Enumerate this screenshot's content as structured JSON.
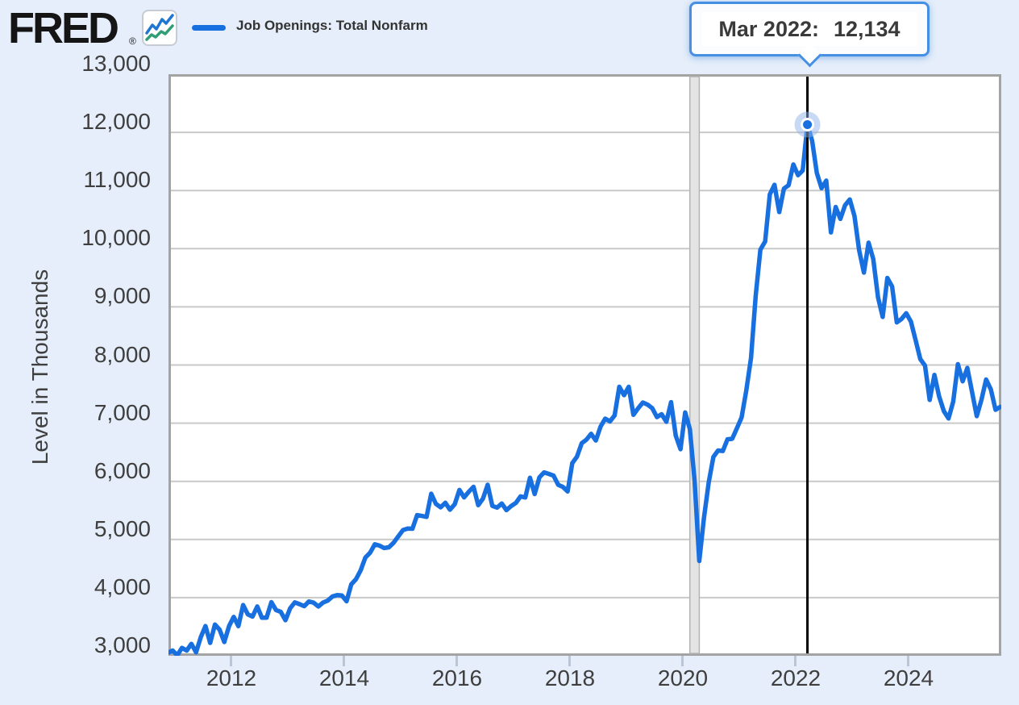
{
  "header": {
    "logo_text": "FRED",
    "logo_registered": "®",
    "legend_label": "Job Openings: Total Nonfarm"
  },
  "tooltip": {
    "date_label": "Mar 2022:",
    "value_label": "12,134"
  },
  "y_axis": {
    "title": "Level in Thousands",
    "ticks": [
      "13,000",
      "12,000",
      "11,000",
      "10,000",
      "9,000",
      "8,000",
      "7,000",
      "6,000",
      "5,000",
      "4,000",
      "3,000"
    ],
    "tick_values": [
      13000,
      12000,
      11000,
      10000,
      9000,
      8000,
      7000,
      6000,
      5000,
      4000,
      3000
    ]
  },
  "x_axis": {
    "ticks": [
      {
        "label": "2012",
        "year": 2012
      },
      {
        "label": "2014",
        "year": 2014
      },
      {
        "label": "2016",
        "year": 2016
      },
      {
        "label": "2018",
        "year": 2018
      },
      {
        "label": "2020",
        "year": 2020
      },
      {
        "label": "2022",
        "year": 2022
      },
      {
        "label": "2024",
        "year": 2024
      }
    ]
  },
  "colors": {
    "background": "#e5eefa",
    "line": "#176fe0",
    "grid": "#c9c9c9",
    "plot_border": "#a3a3a3",
    "band_fill": "#e4e4e4",
    "band_edge": "#b3b3b3",
    "halo": "#8fb4ea",
    "vline": "#000000",
    "tooltip_border": "#4590e2",
    "icon_blue": "#2176d2",
    "icon_green": "#2f9e77"
  },
  "chart_data": {
    "type": "line",
    "title": "Job Openings: Total Nonfarm",
    "ylabel": "Level in Thousands",
    "frequency": "monthly",
    "ylim": [
      3000,
      13000
    ],
    "xlim_years": [
      2010.886,
      2025.643
    ],
    "grid": "horizontal",
    "legend_position": "top-left",
    "recession_band": {
      "start": "2020-02",
      "end": "2020-04"
    },
    "highlight": {
      "date": "2022-03",
      "value": 12134,
      "label": "Mar 2022:  12,134"
    },
    "dates": [
      "2010-11",
      "2010-12",
      "2011-01",
      "2011-02",
      "2011-03",
      "2011-04",
      "2011-05",
      "2011-06",
      "2011-07",
      "2011-08",
      "2011-09",
      "2011-10",
      "2011-11",
      "2011-12",
      "2012-01",
      "2012-02",
      "2012-03",
      "2012-04",
      "2012-05",
      "2012-06",
      "2012-07",
      "2012-08",
      "2012-09",
      "2012-10",
      "2012-11",
      "2012-12",
      "2013-01",
      "2013-02",
      "2013-03",
      "2013-04",
      "2013-05",
      "2013-06",
      "2013-07",
      "2013-08",
      "2013-09",
      "2013-10",
      "2013-11",
      "2013-12",
      "2014-01",
      "2014-02",
      "2014-03",
      "2014-04",
      "2014-05",
      "2014-06",
      "2014-07",
      "2014-08",
      "2014-09",
      "2014-10",
      "2014-11",
      "2014-12",
      "2015-01",
      "2015-02",
      "2015-03",
      "2015-04",
      "2015-05",
      "2015-06",
      "2015-07",
      "2015-08",
      "2015-09",
      "2015-10",
      "2015-11",
      "2015-12",
      "2016-01",
      "2016-02",
      "2016-03",
      "2016-04",
      "2016-05",
      "2016-06",
      "2016-07",
      "2016-08",
      "2016-09",
      "2016-10",
      "2016-11",
      "2016-12",
      "2017-01",
      "2017-02",
      "2017-03",
      "2017-04",
      "2017-05",
      "2017-06",
      "2017-07",
      "2017-08",
      "2017-09",
      "2017-10",
      "2017-11",
      "2017-12",
      "2018-01",
      "2018-02",
      "2018-03",
      "2018-04",
      "2018-05",
      "2018-06",
      "2018-07",
      "2018-08",
      "2018-09",
      "2018-10",
      "2018-11",
      "2018-12",
      "2019-01",
      "2019-02",
      "2019-03",
      "2019-04",
      "2019-05",
      "2019-06",
      "2019-07",
      "2019-08",
      "2019-09",
      "2019-10",
      "2019-11",
      "2019-12",
      "2020-01",
      "2020-02",
      "2020-03",
      "2020-04",
      "2020-05",
      "2020-06",
      "2020-07",
      "2020-08",
      "2020-09",
      "2020-10",
      "2020-11",
      "2020-12",
      "2021-01",
      "2021-02",
      "2021-03",
      "2021-04",
      "2021-05",
      "2021-06",
      "2021-07",
      "2021-08",
      "2021-09",
      "2021-10",
      "2021-11",
      "2021-12",
      "2022-01",
      "2022-02",
      "2022-03",
      "2022-04",
      "2022-05",
      "2022-06",
      "2022-07",
      "2022-08",
      "2022-09",
      "2022-10",
      "2022-11",
      "2022-12",
      "2023-01",
      "2023-02",
      "2023-03",
      "2023-04",
      "2023-05",
      "2023-06",
      "2023-07",
      "2023-08",
      "2023-09",
      "2023-10",
      "2023-11",
      "2023-12",
      "2024-01",
      "2024-02",
      "2024-03",
      "2024-04",
      "2024-05",
      "2024-06",
      "2024-07",
      "2024-08",
      "2024-09",
      "2024-10",
      "2024-11",
      "2024-12",
      "2025-01",
      "2025-02",
      "2025-03",
      "2025-04",
      "2025-05",
      "2025-06",
      "2025-07",
      "2025-08"
    ],
    "values": [
      3050,
      3091,
      3008,
      3136,
      3090,
      3205,
      3060,
      3322,
      3512,
      3222,
      3537,
      3449,
      3237,
      3509,
      3668,
      3510,
      3872,
      3713,
      3674,
      3848,
      3655,
      3656,
      3922,
      3787,
      3756,
      3612,
      3817,
      3918,
      3887,
      3853,
      3935,
      3912,
      3848,
      3916,
      3948,
      4021,
      4043,
      4036,
      3937,
      4228,
      4318,
      4470,
      4690,
      4772,
      4917,
      4895,
      4853,
      4865,
      4943,
      5054,
      5162,
      5187,
      5185,
      5419,
      5405,
      5389,
      5787,
      5613,
      5553,
      5631,
      5512,
      5607,
      5852,
      5724,
      5822,
      5906,
      5589,
      5703,
      5940,
      5577,
      5548,
      5618,
      5505,
      5576,
      5628,
      5740,
      5722,
      6061,
      5781,
      6068,
      6154,
      6128,
      6098,
      5940,
      5904,
      5826,
      6313,
      6424,
      6656,
      6715,
      6817,
      6702,
      6939,
      7078,
      7030,
      7133,
      7626,
      7481,
      7625,
      7143,
      7257,
      7355,
      7319,
      7257,
      7104,
      7154,
      7024,
      7361,
      6787,
      6552,
      7185,
      6897,
      6011,
      4630,
      5371,
      5980,
      6419,
      6530,
      6522,
      6722,
      6731,
      6913,
      7099,
      7560,
      8123,
      9193,
      9983,
      10123,
      10934,
      11098,
      10629,
      11033,
      11091,
      11448,
      11263,
      11344,
      12134,
      11855,
      11303,
      11040,
      11170,
      10280,
      10717,
      10512,
      10746,
      10846,
      10563,
      9974,
      9590,
      10103,
      9824,
      9165,
      8827,
      9497,
      9350,
      8733,
      8790,
      8889,
      8748,
      8430,
      8100,
      7990,
      7400,
      7830,
      7460,
      7210,
      7080,
      7372,
      8014,
      7720,
      7950,
      7540,
      7120,
      7400,
      7750,
      7580,
      7230,
      7280
    ]
  }
}
